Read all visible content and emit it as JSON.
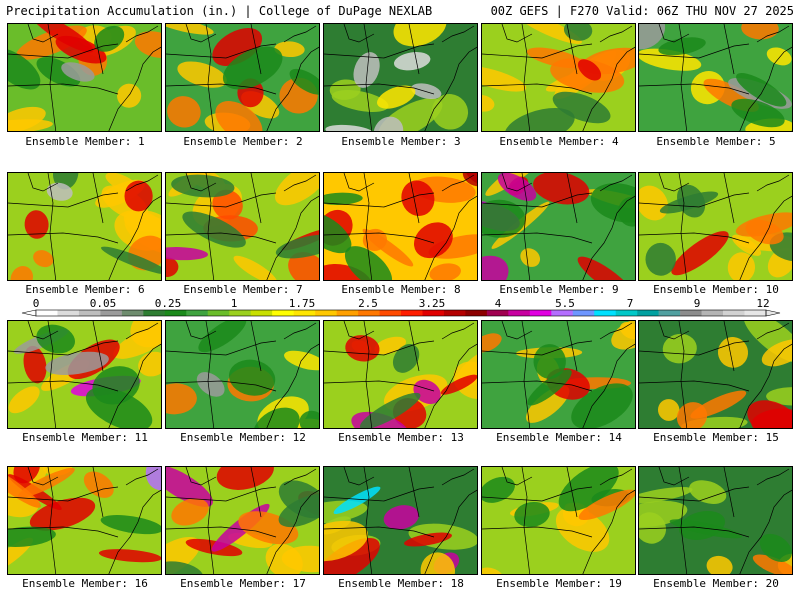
{
  "header": {
    "left": "Precipitation Accumulation (in.) | College of DuPage NEXLAB",
    "right": "00Z GEFS | F270 Valid: 06Z THU NOV 27 2025"
  },
  "panels": [
    {
      "label": "Ensemble Member: 1"
    },
    {
      "label": "Ensemble Member: 2"
    },
    {
      "label": "Ensemble Member: 3"
    },
    {
      "label": "Ensemble Member: 4"
    },
    {
      "label": "Ensemble Member: 5"
    },
    {
      "label": "Ensemble Member: 6"
    },
    {
      "label": "Ensemble Member: 7"
    },
    {
      "label": "Ensemble Member: 8"
    },
    {
      "label": "Ensemble Member: 9"
    },
    {
      "label": "Ensemble Member: 10"
    },
    {
      "label": "Ensemble Member: 11"
    },
    {
      "label": "Ensemble Member: 12"
    },
    {
      "label": "Ensemble Member: 13"
    },
    {
      "label": "Ensemble Member: 14"
    },
    {
      "label": "Ensemble Member: 15"
    },
    {
      "label": "Ensemble Member: 16"
    },
    {
      "label": "Ensemble Member: 17"
    },
    {
      "label": "Ensemble Member: 18"
    },
    {
      "label": "Ensemble Member: 19"
    },
    {
      "label": "Ensemble Member: 20"
    }
  ],
  "chart_data": {
    "type": "heatmap",
    "colorbar": {
      "tick_labels": [
        "0",
        "0.05",
        "0.25",
        "1",
        "1.75",
        "2.5",
        "3.25",
        "4",
        "5.5",
        "7",
        "9",
        "12"
      ],
      "colors": [
        "#ffffff",
        "#dcdcdc",
        "#bebebe",
        "#9b9b9b",
        "#6e8c6e",
        "#2e7d32",
        "#1b8a1b",
        "#3fa33f",
        "#6abd2a",
        "#9bd01e",
        "#c8e000",
        "#ffff00",
        "#ffe600",
        "#ffc800",
        "#ffa000",
        "#ff7800",
        "#ff4b00",
        "#ff1e00",
        "#e10000",
        "#b40000",
        "#8c0000",
        "#a00050",
        "#c800a0",
        "#e100e1",
        "#b46eff",
        "#6e96ff",
        "#00e1ff",
        "#00c8c8",
        "#00a0a0",
        "#50a0a0",
        "#8c8c8c",
        "#b4b4b4",
        "#d2d2d2",
        "#e6e6e6"
      ]
    }
  }
}
